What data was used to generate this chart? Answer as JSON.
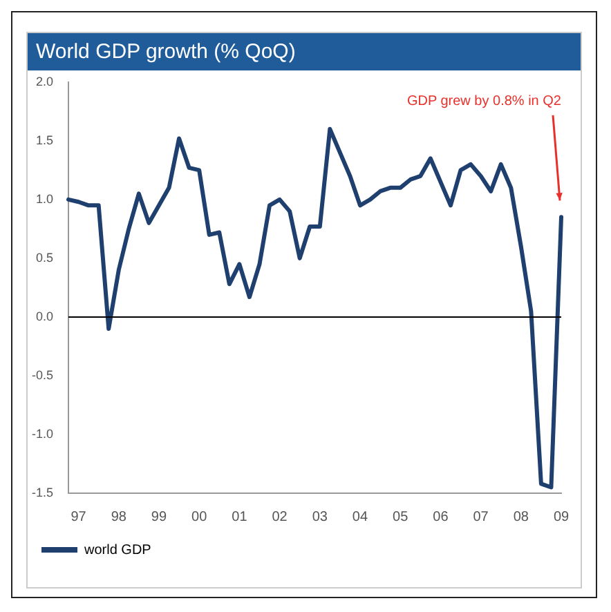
{
  "chart_data": {
    "type": "line",
    "title": "World GDP growth (% QoQ)",
    "categories": [
      null,
      "97",
      null,
      null,
      null,
      "98",
      null,
      null,
      null,
      "99",
      null,
      null,
      null,
      "00",
      null,
      null,
      null,
      "01",
      null,
      null,
      null,
      "02",
      null,
      null,
      null,
      "03",
      null,
      null,
      null,
      "04",
      null,
      null,
      null,
      "05",
      null,
      null,
      null,
      "06",
      null,
      null,
      null,
      "07",
      null,
      null,
      null,
      "08",
      null,
      null,
      null,
      "09"
    ],
    "series": [
      {
        "name": "world GDP",
        "color": "#1f3f6e",
        "values": [
          1.0,
          0.98,
          0.95,
          0.95,
          -0.1,
          0.4,
          0.75,
          1.05,
          0.8,
          0.95,
          1.1,
          1.52,
          1.27,
          1.25,
          0.7,
          0.72,
          0.28,
          0.45,
          0.17,
          0.45,
          0.95,
          1.0,
          0.9,
          0.5,
          0.77,
          0.77,
          1.6,
          1.4,
          1.2,
          0.95,
          1.0,
          1.07,
          1.1,
          1.1,
          1.17,
          1.2,
          1.35,
          1.15,
          0.95,
          1.25,
          1.3,
          1.2,
          1.07,
          1.3,
          1.1,
          0.6,
          0.05,
          -1.42,
          -1.45,
          0.85
        ]
      }
    ],
    "ylim": [
      -1.5,
      2.0
    ],
    "yticks": [
      {
        "value": -1.5,
        "label": "-1.5"
      },
      {
        "value": -1,
        "label": "-1.0"
      },
      {
        "value": -0.5,
        "label": "-0.5"
      },
      {
        "value": 0,
        "label": "0.0"
      },
      {
        "value": 0.5,
        "label": "0.5"
      },
      {
        "value": 1,
        "label": "1.0"
      },
      {
        "value": 1.5,
        "label": "1.5"
      },
      {
        "value": 2,
        "label": "2.0"
      }
    ],
    "ref_lines": [
      {
        "axis": "y",
        "value": 0,
        "color": "#000000"
      }
    ],
    "annotations": [
      "GDP grew by 0.8% in Q2"
    ],
    "grid": false,
    "legend": "bottom left",
    "marker": "none",
    "line_style": "solid"
  }
}
